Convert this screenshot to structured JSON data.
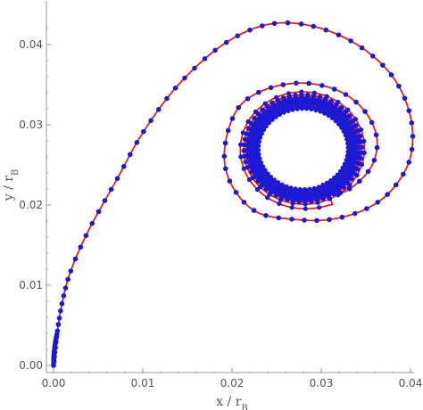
{
  "chart_data": {
    "type": "scatter",
    "xlabel": "x / r",
    "xlabel_sub": "B",
    "ylabel": "y / r",
    "ylabel_sub": "B",
    "xlim": [
      0,
      0.04
    ],
    "ylim": [
      0,
      0.045
    ],
    "x_ticks": [
      0.0,
      0.01,
      0.02,
      0.03,
      0.04
    ],
    "x_tick_labels": [
      "0.00",
      "0.01",
      "0.02",
      "0.03",
      "0.04"
    ],
    "y_ticks": [
      0.0,
      0.01,
      0.02,
      0.03,
      0.04
    ],
    "y_tick_labels": [
      "0.00",
      "0.01",
      "0.02",
      "0.03",
      "0.04"
    ],
    "grid": false,
    "colors": {
      "points": "#1a1ad6",
      "curve": "#e02020",
      "axes": "#999999"
    },
    "spiral": {
      "center": [
        0.028,
        0.027
      ],
      "start": [
        0.0,
        0.0
      ],
      "outer_leg": [
        [
          0.0,
          0.0
        ],
        [
          0.0004,
          0.004
        ],
        [
          0.001,
          0.008
        ],
        [
          0.002,
          0.012
        ],
        [
          0.004,
          0.017
        ],
        [
          0.007,
          0.023
        ],
        [
          0.01,
          0.029
        ],
        [
          0.014,
          0.035
        ],
        [
          0.019,
          0.04
        ],
        [
          0.024,
          0.0425
        ],
        [
          0.029,
          0.0423
        ],
        [
          0.034,
          0.04
        ],
        [
          0.038,
          0.036
        ],
        [
          0.04,
          0.031
        ],
        [
          0.04,
          0.026
        ],
        [
          0.038,
          0.022
        ],
        [
          0.035,
          0.0195
        ],
        [
          0.031,
          0.0182
        ],
        [
          0.027,
          0.0182
        ],
        [
          0.023,
          0.019
        ],
        [
          0.0205,
          0.0215
        ],
        [
          0.0192,
          0.025
        ],
        [
          0.0195,
          0.029
        ],
        [
          0.021,
          0.0325
        ],
        [
          0.024,
          0.0345
        ],
        [
          0.028,
          0.0352
        ],
        [
          0.032,
          0.0342
        ],
        [
          0.0348,
          0.0318
        ],
        [
          0.0362,
          0.0285
        ],
        [
          0.0358,
          0.0252
        ],
        [
          0.0338,
          0.0225
        ],
        [
          0.031,
          0.0208
        ]
      ],
      "inner_radius_x": 0.0018,
      "inner_radius_y": 0.0016,
      "turns": 16
    }
  }
}
